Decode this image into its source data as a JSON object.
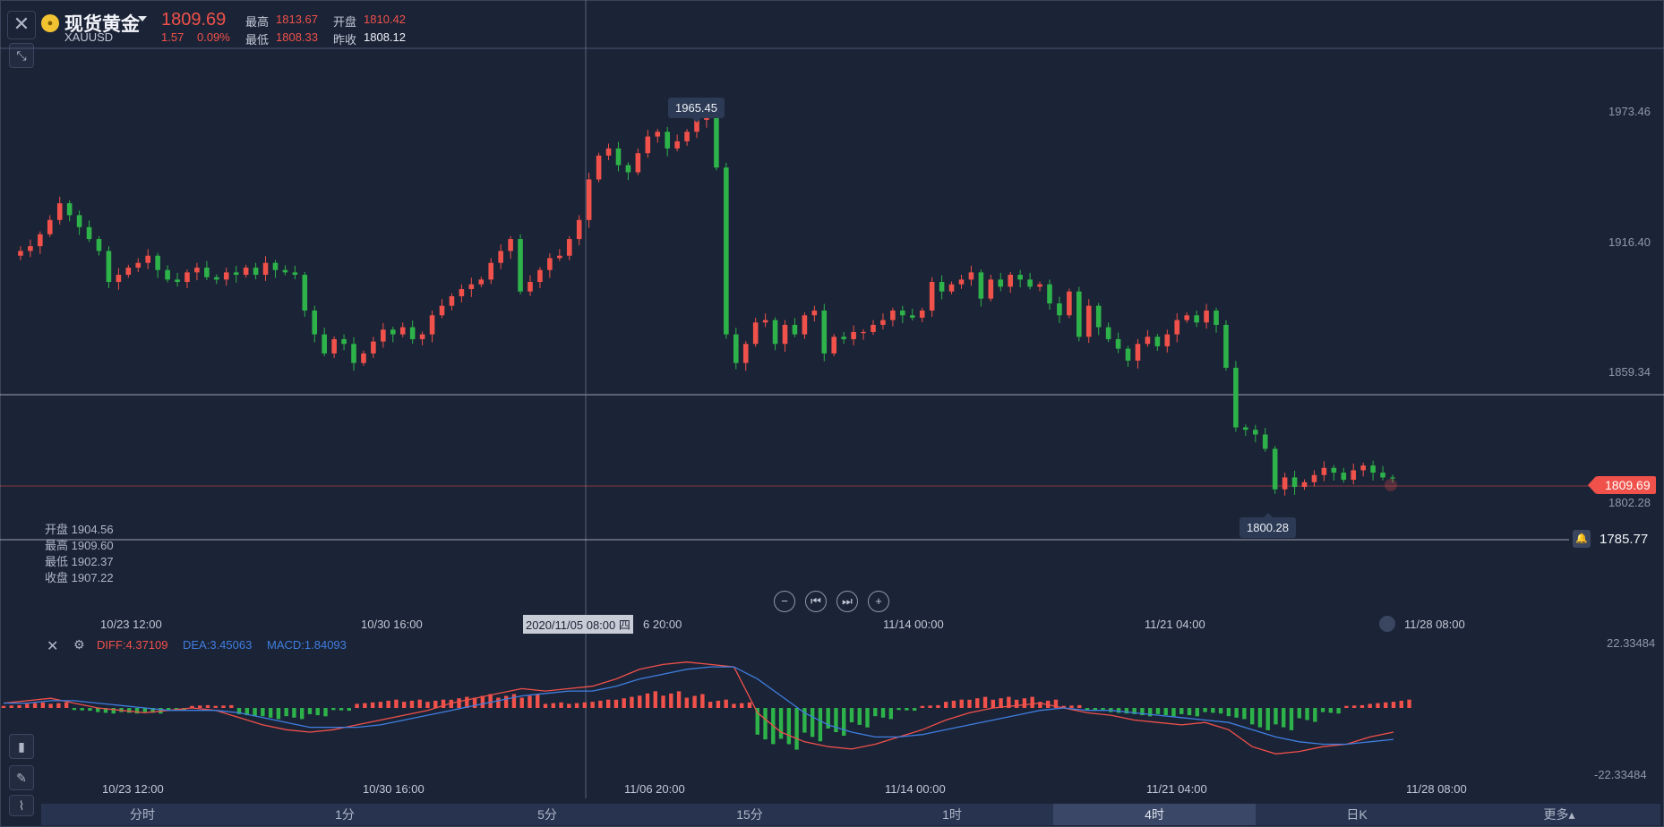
{
  "header": {
    "symbol_name": "现货黄金",
    "symbol_code": "XAUUSD",
    "last_price": "1809.69",
    "change": "1.57",
    "change_pct": "0.09%",
    "stats": {
      "high_label": "最高",
      "high": "1813.67",
      "open_label": "开盘",
      "open": "1810.42",
      "low_label": "最低",
      "low": "1808.33",
      "prev_label": "昨收",
      "prev_close": "1808.12"
    }
  },
  "ohlc_panel": [
    {
      "label": "开盘",
      "value": "1904.56"
    },
    {
      "label": "最高",
      "value": "1909.60"
    },
    {
      "label": "最低",
      "value": "1902.37"
    },
    {
      "label": "收盘",
      "value": "1907.22"
    }
  ],
  "price_axis": [
    "1973.46",
    "1916.40",
    "1859.34",
    "1802.28"
  ],
  "current_price_badge": "1809.69",
  "alert_line_value": "1785.77",
  "high_marker": "1965.45",
  "low_marker": "1800.28",
  "time_labels_main": [
    "10/23 12:00",
    "10/30 16:00",
    "6 20:00",
    "11/14 00:00",
    "11/21 04:00",
    "11/28 08:00"
  ],
  "time_labels_macd": [
    "10/23 12:00",
    "10/30 16:00",
    "11/06 20:00",
    "11/14 00:00",
    "11/21 04:00",
    "11/28 08:00"
  ],
  "crosshair_date": "2020/11/05 08:00 四",
  "macd": {
    "diff_label": "DIFF:4.37109",
    "dea_label": "DEA:3.45063",
    "macd_label": "MACD:1.84093",
    "axis_top": "22.33484",
    "axis_bottom": "-22.33484"
  },
  "timeframes": [
    "分时",
    "1分",
    "5分",
    "15分",
    "1时",
    "4时",
    "日K",
    "更多▴"
  ],
  "active_timeframe": "4时",
  "colors": {
    "up": "#f0514a",
    "down": "#2db34a",
    "bg": "#1b2336",
    "diff": "#f0514a",
    "dea": "#3f7fe0"
  },
  "chart_data": {
    "type": "candlestick",
    "price_range": [
      1785,
      1990
    ],
    "highlighted_high": 1965.45,
    "highlighted_low": 1800.28,
    "current_price": 1809.69,
    "price_path": [
      1903,
      1905,
      1907,
      1912,
      1918,
      1925,
      1920,
      1915,
      1910,
      1905,
      1892,
      1895,
      1898,
      1900,
      1903,
      1897,
      1893,
      1892,
      1896,
      1898,
      1894,
      1893,
      1896,
      1895,
      1898,
      1895,
      1900,
      1897,
      1896,
      1895,
      1880,
      1870,
      1862,
      1868,
      1866,
      1858,
      1862,
      1867,
      1872,
      1870,
      1873,
      1868,
      1870,
      1878,
      1882,
      1886,
      1889,
      1891,
      1893,
      1900,
      1905,
      1910,
      1888,
      1892,
      1897,
      1902,
      1903,
      1910,
      1918,
      1935,
      1945,
      1948,
      1941,
      1938,
      1946,
      1953,
      1955,
      1948,
      1951,
      1955,
      1960,
      1965,
      1940,
      1870,
      1858,
      1866,
      1875,
      1876,
      1866,
      1874,
      1870,
      1878,
      1880,
      1862,
      1869,
      1868,
      1871,
      1871,
      1874,
      1876,
      1880,
      1878,
      1877,
      1880,
      1892,
      1888,
      1891,
      1893,
      1896,
      1885,
      1893,
      1890,
      1895,
      1893,
      1890,
      1891,
      1883,
      1878,
      1888,
      1869,
      1882,
      1873,
      1868,
      1864,
      1859,
      1866,
      1869,
      1865,
      1870,
      1876,
      1878,
      1875,
      1880,
      1874,
      1856,
      1831,
      1830,
      1828,
      1822,
      1805,
      1810,
      1806,
      1808,
      1811,
      1814,
      1812,
      1809,
      1813,
      1815,
      1812,
      1810,
      1809.69
    ],
    "macd_diff": [
      2,
      3,
      4,
      2,
      0,
      -1,
      -2,
      -1,
      0,
      -1,
      -4,
      -7,
      -9,
      -10,
      -9,
      -7,
      -5,
      -3,
      -1,
      2,
      4,
      6,
      8,
      7,
      8,
      9,
      12,
      16,
      18,
      19,
      18,
      17,
      -2,
      -10,
      -14,
      -16,
      -17,
      -15,
      -12,
      -9,
      -5,
      -2,
      0,
      1,
      2,
      0,
      -2,
      -3,
      -5,
      -6,
      -7,
      -6,
      -9,
      -16,
      -19,
      -18,
      -16,
      -15,
      -12,
      -10
    ],
    "macd_dea": [
      2,
      2,
      3,
      3,
      2,
      1,
      0,
      -1,
      -1,
      -1,
      -2,
      -4,
      -6,
      -8,
      -8,
      -8,
      -7,
      -5,
      -3,
      -1,
      1,
      3,
      5,
      6,
      7,
      7,
      9,
      12,
      14,
      16,
      17,
      17,
      12,
      5,
      -2,
      -7,
      -10,
      -12,
      -12,
      -11,
      -9,
      -7,
      -5,
      -3,
      -1,
      0,
      -1,
      -1,
      -2,
      -3,
      -4,
      -5,
      -6,
      -9,
      -12,
      -14,
      -15,
      -15,
      -14,
      -13
    ],
    "macd_hist": [
      1,
      2,
      2,
      -1,
      -2,
      -2,
      -2,
      -1,
      1,
      1,
      -3,
      -4,
      -4,
      -3,
      -1,
      2,
      3,
      3,
      3,
      4,
      5,
      5,
      5,
      2,
      2,
      3,
      4,
      6,
      6,
      5,
      3,
      2,
      -13,
      -15,
      -12,
      -10,
      -7,
      -4,
      -1,
      1,
      3,
      4,
      4,
      4,
      3,
      1,
      -1,
      -2,
      -3,
      -3,
      -3,
      -2,
      -4,
      -8,
      -8,
      -5,
      -2,
      1,
      2,
      3
    ]
  }
}
